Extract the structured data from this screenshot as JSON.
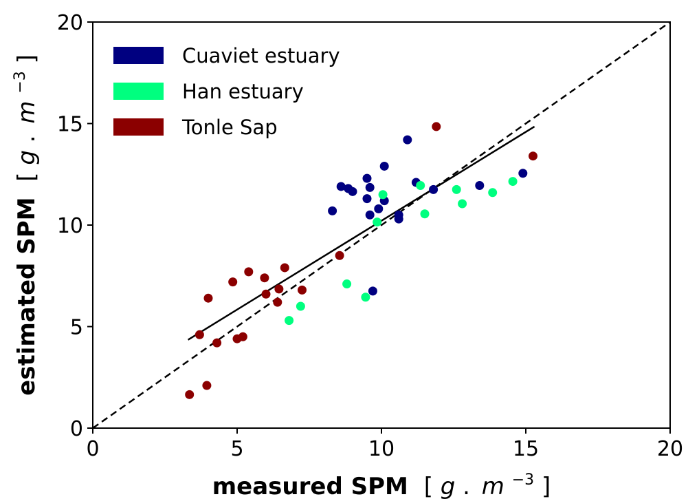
{
  "chart_data": {
    "type": "scatter",
    "xlim": [
      0,
      20
    ],
    "ylim": [
      0,
      20
    ],
    "x_ticks": [
      "0",
      "5",
      "10",
      "15",
      "20"
    ],
    "y_ticks": [
      "0",
      "5",
      "10",
      "15",
      "20"
    ],
    "xlabel": {
      "bold": "measured SPM",
      "bracket_open": "[",
      "unit_g": "g",
      "unit_dot": ".",
      "unit_m": "m",
      "exponent": "−3",
      "bracket_close": "]"
    },
    "ylabel": {
      "bold": "estimated SPM",
      "bracket_open": "[",
      "unit_g": "g",
      "unit_dot": ".",
      "unit_m": "m",
      "exponent": "−3",
      "bracket_close": "]"
    },
    "legend_position": "upper-left",
    "grid": false,
    "series": [
      {
        "name": "Cuaviet estuary",
        "color": "#000080",
        "points": [
          [
            8.3,
            10.7
          ],
          [
            8.6,
            11.9
          ],
          [
            8.85,
            11.8
          ],
          [
            9.0,
            11.65
          ],
          [
            9.5,
            12.3
          ],
          [
            9.6,
            11.85
          ],
          [
            9.5,
            11.3
          ],
          [
            9.6,
            10.5
          ],
          [
            9.7,
            6.75
          ],
          [
            9.9,
            10.8
          ],
          [
            10.1,
            12.9
          ],
          [
            10.1,
            11.2
          ],
          [
            10.6,
            10.5
          ],
          [
            10.6,
            10.3
          ],
          [
            10.9,
            14.2
          ],
          [
            11.2,
            12.1
          ],
          [
            11.8,
            11.75
          ],
          [
            13.4,
            11.95
          ],
          [
            14.9,
            12.55
          ]
        ]
      },
      {
        "name": "Han estuary",
        "color": "#00ff7f",
        "points": [
          [
            6.8,
            5.3
          ],
          [
            7.2,
            6.0
          ],
          [
            8.8,
            7.1
          ],
          [
            9.45,
            6.45
          ],
          [
            9.85,
            10.15
          ],
          [
            10.05,
            11.5
          ],
          [
            11.35,
            11.95
          ],
          [
            11.5,
            10.55
          ],
          [
            12.6,
            11.75
          ],
          [
            12.8,
            11.05
          ],
          [
            13.85,
            11.6
          ],
          [
            14.55,
            12.15
          ]
        ]
      },
      {
        "name": "Tonle Sap",
        "color": "#8b0000",
        "points": [
          [
            3.35,
            1.65
          ],
          [
            3.7,
            4.6
          ],
          [
            3.95,
            2.1
          ],
          [
            4.0,
            6.4
          ],
          [
            4.3,
            4.2
          ],
          [
            4.85,
            7.2
          ],
          [
            5.0,
            4.4
          ],
          [
            5.2,
            4.5
          ],
          [
            5.4,
            7.7
          ],
          [
            5.95,
            7.4
          ],
          [
            6.0,
            6.6
          ],
          [
            6.4,
            6.2
          ],
          [
            6.45,
            6.85
          ],
          [
            6.65,
            7.9
          ],
          [
            7.25,
            6.8
          ],
          [
            8.55,
            8.5
          ],
          [
            11.9,
            14.85
          ],
          [
            15.25,
            13.4
          ]
        ]
      }
    ],
    "lines": [
      {
        "style": "dashed",
        "color": "#000000",
        "from": [
          0,
          0
        ],
        "to": [
          20,
          20
        ]
      },
      {
        "style": "solid",
        "color": "#000000",
        "from": [
          3.3,
          4.35
        ],
        "to": [
          15.3,
          14.85
        ]
      }
    ]
  }
}
